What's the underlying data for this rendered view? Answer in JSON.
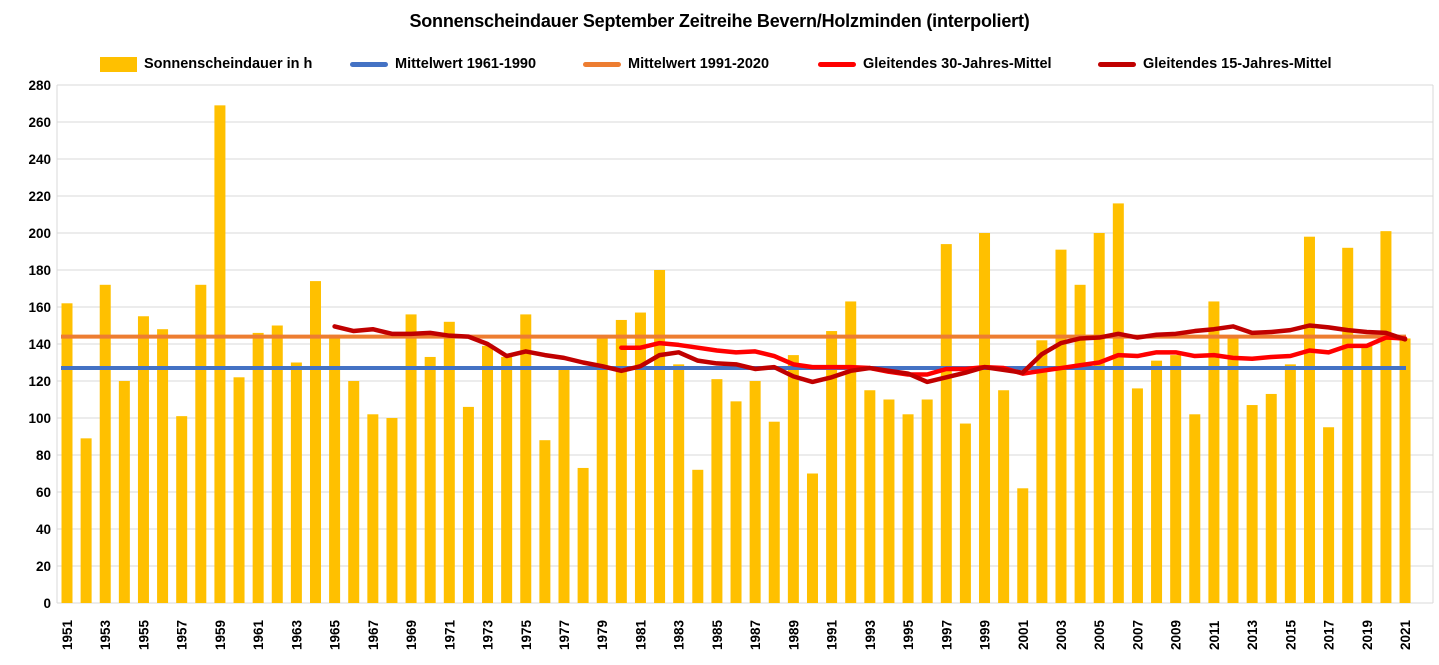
{
  "title": "Sonnenscheindauer September Zeitreihe Bevern/Holzminden (interpoliert)",
  "legend": [
    {
      "label": "Sonnenscheindauer in h",
      "type": "box",
      "color": "#FFC000"
    },
    {
      "label": "Mittelwert 1961-1990",
      "type": "line",
      "color": "#4472C4"
    },
    {
      "label": "Mittelwert 1991-2020",
      "type": "line",
      "color": "#ED7D31"
    },
    {
      "label": "Gleitendes 30-Jahres-Mittel",
      "type": "line",
      "color": "#FF0000"
    },
    {
      "label": "Gleitendes 15-Jahres-Mittel",
      "type": "line",
      "color": "#C00000"
    }
  ],
  "chart_data": {
    "type": "bar",
    "title": "Sonnenscheindauer September Zeitreihe Bevern/Holzminden (interpoliert)",
    "xlabel": "",
    "ylabel": "",
    "unit": "h",
    "grid": true,
    "legend_position": "top",
    "bar_color": "#FFC000",
    "gridline_color": "#D9D9D9",
    "ylim": [
      0,
      280
    ],
    "y_ticks": [
      0,
      20,
      40,
      60,
      80,
      100,
      120,
      140,
      160,
      180,
      200,
      220,
      240,
      260,
      280
    ],
    "start_year": 1951,
    "values": [
      162,
      89,
      172,
      120,
      155,
      148,
      101,
      172,
      269,
      122,
      146,
      150,
      130,
      174,
      145,
      120,
      102,
      100,
      156,
      133,
      152,
      106,
      139,
      133,
      156,
      88,
      127,
      73,
      144,
      153,
      157,
      180,
      129,
      72,
      121,
      109,
      120,
      98,
      134,
      70,
      147,
      163,
      115,
      110,
      102,
      110,
      194,
      97,
      200,
      115,
      62,
      142,
      191,
      172,
      200,
      216,
      116,
      131,
      134,
      102,
      163,
      143,
      107,
      113,
      129,
      198,
      95,
      192,
      139,
      201,
      143
    ],
    "x_tick_labels": [
      "1951",
      "1953",
      "1955",
      "1957",
      "1959",
      "1961",
      "1963",
      "1965",
      "1967",
      "1969",
      "1971",
      "1973",
      "1975",
      "1977",
      "1979",
      "1981",
      "1983",
      "1985",
      "1987",
      "1989",
      "1991",
      "1993",
      "1995",
      "1997",
      "1999",
      "2001",
      "2003",
      "2005",
      "2007",
      "2009",
      "2011",
      "2013",
      "2015",
      "2017",
      "2019",
      "2021"
    ],
    "reference_lines": [
      {
        "name": "Mittelwert 1961-1990",
        "value": 127,
        "color": "#4472C4"
      },
      {
        "name": "Mittelwert 1991-2020",
        "value": 144,
        "color": "#ED7D31"
      }
    ],
    "series": [
      {
        "name": "Gleitendes 30-Jahres-Mittel",
        "start_year": 1980,
        "color": "#FF0000",
        "values": [
          138,
          138,
          140.5,
          139.5,
          138,
          136.5,
          135.5,
          136,
          133.5,
          129,
          127.5,
          127.5,
          127.5,
          127,
          125,
          123.5,
          123.5,
          126.5,
          126.5,
          127.5,
          127,
          124,
          125.5,
          127,
          128.5,
          130,
          134,
          133.5,
          135.5,
          135.5,
          133.5,
          134,
          132.5,
          132,
          133,
          133.5,
          136.5,
          135.5,
          139,
          139,
          143.5,
          143
        ]
      },
      {
        "name": "Gleitendes 15-Jahres-Mittel",
        "start_year": 1965,
        "color": "#C00000",
        "values": [
          149.5,
          147,
          148,
          145.5,
          145.5,
          146,
          144.5,
          144,
          140,
          133.5,
          136,
          134,
          132.5,
          130,
          128,
          125.5,
          128,
          134,
          135.5,
          131,
          129.5,
          129,
          126.5,
          127.5,
          122.5,
          119.5,
          122,
          125.5,
          127,
          125.5,
          124,
          119.5,
          122,
          124.5,
          127.5,
          126,
          124.5,
          134.5,
          140.5,
          143,
          143.5,
          145.5,
          143.5,
          145,
          145.5,
          147,
          148,
          149.5,
          146,
          146.5,
          147.5,
          150,
          149,
          147.5,
          146.5,
          146,
          142.5
        ]
      }
    ]
  }
}
